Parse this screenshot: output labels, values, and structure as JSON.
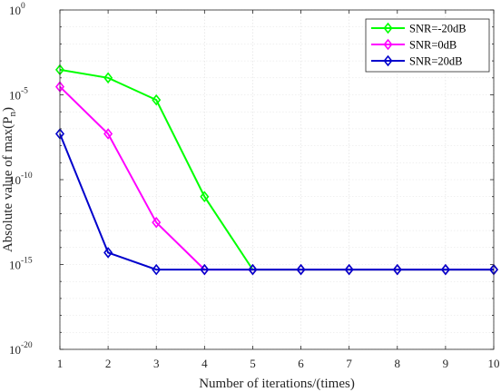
{
  "chart_data": {
    "type": "line",
    "xlabel": "Number of iterations/(times)",
    "ylabel_main": "Absolute value of max(P",
    "ylabel_sub": "n",
    "ylabel_close": ")",
    "x": [
      1,
      2,
      3,
      4,
      5,
      6,
      7,
      8,
      9,
      10
    ],
    "xlim": [
      1,
      10
    ],
    "ylim_log10": [
      -20,
      0
    ],
    "y_scale": "log",
    "x_ticks": [
      "1",
      "2",
      "3",
      "4",
      "5",
      "6",
      "7",
      "8",
      "9",
      "10"
    ],
    "y_ticks": [
      {
        "exp": 0,
        "base": "10",
        "sup": "0"
      },
      {
        "exp": -5,
        "base": "10",
        "sup": "-5"
      },
      {
        "exp": -10,
        "base": "10",
        "sup": "-10"
      },
      {
        "exp": -15,
        "base": "10",
        "sup": "-15"
      },
      {
        "exp": -20,
        "base": "10",
        "sup": "-20"
      }
    ],
    "grid": true,
    "legend_position": "top-right",
    "series": [
      {
        "name": "SNR=-20dB",
        "color": "#00ff00",
        "marker": "diamond",
        "values": [
          0.0003,
          0.0001,
          5e-06,
          1e-11,
          5e-16,
          5e-16,
          5e-16,
          5e-16,
          5e-16,
          5e-16
        ]
      },
      {
        "name": "SNR=0dB",
        "color": "#ff00ff",
        "marker": "diamond",
        "values": [
          3e-05,
          5e-08,
          3e-13,
          5e-16,
          5e-16,
          5e-16,
          5e-16,
          5e-16,
          5e-16,
          5e-16
        ]
      },
      {
        "name": "SNR=20dB",
        "color": "#0000cc",
        "marker": "diamond",
        "values": [
          5e-08,
          5e-15,
          5e-16,
          5e-16,
          5e-16,
          5e-16,
          5e-16,
          5e-16,
          5e-16,
          5e-16
        ]
      }
    ]
  }
}
